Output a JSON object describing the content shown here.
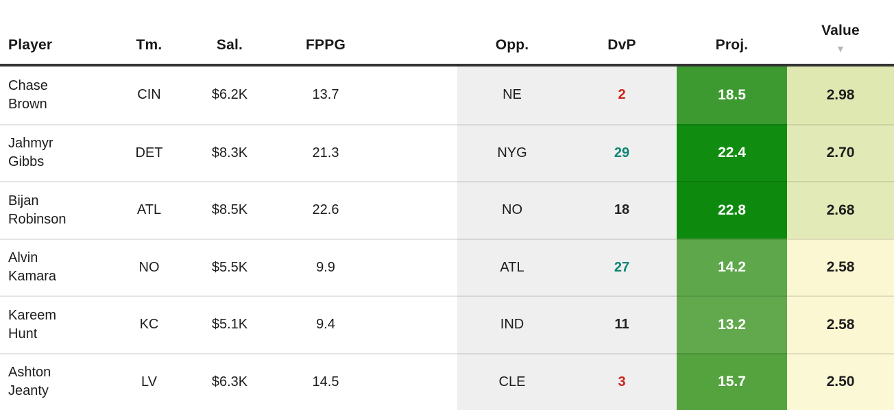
{
  "header": {
    "columns": {
      "player": "Player",
      "team": "Tm.",
      "salary": "Sal.",
      "fppg": "FPPG",
      "opp": "Opp.",
      "dvp": "DvP",
      "proj": "Proj.",
      "value": "Value"
    },
    "sort": {
      "column": "Value",
      "direction": "desc",
      "icon": "▼"
    }
  },
  "rows": [
    {
      "player_first": "Chase",
      "player_last": "Brown",
      "team": "CIN",
      "salary": "$6.2K",
      "fppg": "13.7",
      "opp": "NE",
      "dvp": "2",
      "dvp_tone": "bad",
      "proj": "18.5",
      "proj_bg": "#3c9a31",
      "value": "2.98",
      "value_bg": "#e0e8b2"
    },
    {
      "player_first": "Jahmyr",
      "player_last": "Gibbs",
      "team": "DET",
      "salary": "$8.3K",
      "fppg": "21.3",
      "opp": "NYG",
      "dvp": "29",
      "dvp_tone": "good",
      "proj": "22.4",
      "proj_bg": "#108c10",
      "value": "2.70",
      "value_bg": "#e1eab6"
    },
    {
      "player_first": "Bijan",
      "player_last": "Robinson",
      "team": "ATL",
      "salary": "$8.5K",
      "fppg": "22.6",
      "opp": "NO",
      "dvp": "18",
      "dvp_tone": "neutral",
      "proj": "22.8",
      "proj_bg": "#0d8a0d",
      "value": "2.68",
      "value_bg": "#e2eab8"
    },
    {
      "player_first": "Alvin",
      "player_last": "Kamara",
      "team": "NO",
      "salary": "$5.5K",
      "fppg": "9.9",
      "opp": "ATL",
      "dvp": "27",
      "dvp_tone": "good",
      "proj": "14.2",
      "proj_bg": "#5ea74a",
      "value": "2.58",
      "value_bg": "#faf7d2"
    },
    {
      "player_first": "Kareem",
      "player_last": "Hunt",
      "team": "KC",
      "salary": "$5.1K",
      "fppg": "9.4",
      "opp": "IND",
      "dvp": "11",
      "dvp_tone": "neutral",
      "proj": "13.2",
      "proj_bg": "#62a94d",
      "value": "2.58",
      "value_bg": "#faf7d2"
    },
    {
      "player_first": "Ashton",
      "player_last": "Jeanty",
      "team": "LV",
      "salary": "$6.3K",
      "fppg": "14.5",
      "opp": "CLE",
      "dvp": "3",
      "dvp_tone": "bad",
      "proj": "15.7",
      "proj_bg": "#54a33f",
      "value": "2.50",
      "value_bg": "#fbf8d6"
    }
  ],
  "colors": {
    "header_border": "#333333",
    "opp_dvp_bg": "#efefef",
    "row_divider": "rgba(0,0,0,0.10)",
    "dvp_bad": "#c9251c",
    "dvp_good": "#0c8573",
    "dvp_neutral": "#222222",
    "sort_icon": "#b5b5b5",
    "proj_text": "#ffffff"
  }
}
